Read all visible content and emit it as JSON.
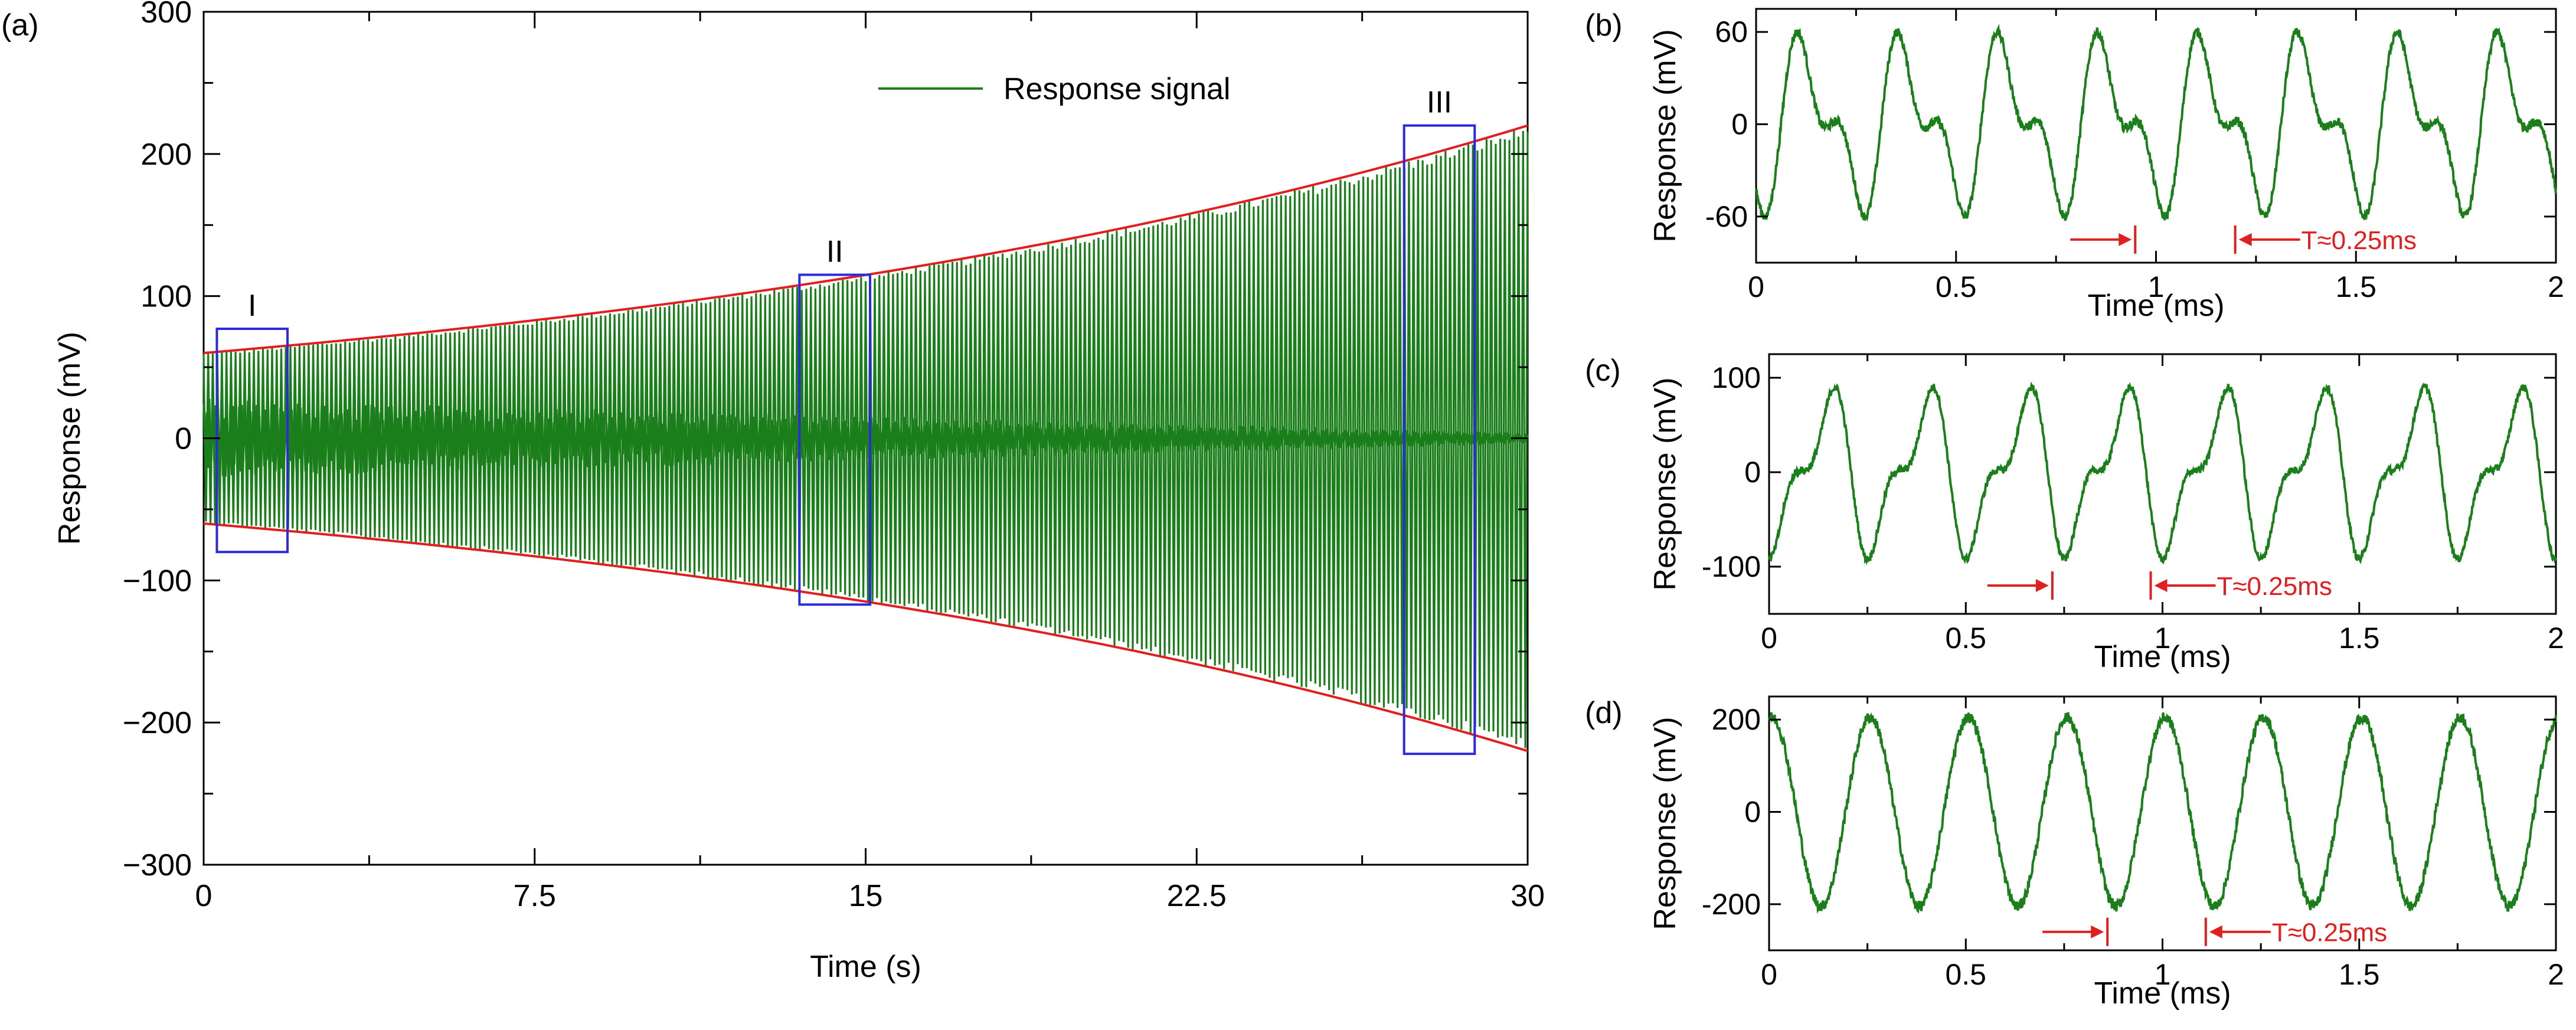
{
  "chart_data": [
    {
      "panel": "(a)",
      "type": "line",
      "xlabel": "Time (s)",
      "ylabel": "Response (mV)",
      "xlim": [
        0,
        30
      ],
      "ylim": [
        -300,
        300
      ],
      "xticks": [
        0,
        7.5,
        15,
        22.5,
        30
      ],
      "xtick_labels": [
        "0",
        "7.5",
        "15",
        "22.5",
        "30"
      ],
      "yticks": [
        -300,
        -200,
        -100,
        0,
        100,
        200,
        300
      ],
      "ytick_labels": [
        "−300",
        "−200",
        "−100",
        "0",
        "100",
        "200",
        "300"
      ],
      "legend": "Response signal",
      "legend_position": "top-right",
      "series": [
        {
          "name": "Response signal",
          "color": "#1a7f1a",
          "envelope_start": 60,
          "envelope_end": 220,
          "envelope_shape": "exponential",
          "inner_noise_start": 28,
          "inner_noise_end": 4
        }
      ],
      "envelope_color": "#e02020",
      "regions": [
        {
          "label": "I",
          "x0": 0.3,
          "x1": 1.9,
          "y0": -80,
          "y1": 77
        },
        {
          "label": "II",
          "x0": 13.5,
          "x1": 15.1,
          "y0": -117,
          "y1": 115
        },
        {
          "label": "III",
          "x0": 27.2,
          "x1": 28.8,
          "y0": -222,
          "y1": 220
        }
      ],
      "region_color": "#2b2bdb"
    },
    {
      "panel": "(b)",
      "type": "line",
      "xlabel": "Time (ms)",
      "ylabel": "Response (mV)",
      "xlim": [
        0,
        2
      ],
      "ylim": [
        -90,
        75
      ],
      "xticks": [
        0,
        0.5,
        1,
        1.5,
        2
      ],
      "xtick_labels": [
        "0",
        "0.5",
        "1",
        "1.5",
        "2"
      ],
      "yticks": [
        -60,
        0,
        60
      ],
      "ytick_labels": [
        "-60",
        "0",
        "60"
      ],
      "period_ms": 0.25,
      "waveform": {
        "a1": 43,
        "a2": 26,
        "phase1": 4.712,
        "phase2": 3.14,
        "noise": 3
      },
      "annotation": {
        "text": "T≈0.25ms",
        "x_left": 0.948,
        "x_right": 1.198,
        "y": -75
      }
    },
    {
      "panel": "(c)",
      "type": "line",
      "xlabel": "Time (ms)",
      "ylabel": "Response (mV)",
      "xlim": [
        0,
        2
      ],
      "ylim": [
        -150,
        125
      ],
      "xticks": [
        0,
        0.5,
        1,
        1.5,
        2
      ],
      "xtick_labels": [
        "0",
        "0.5",
        "1",
        "1.5",
        "2"
      ],
      "yticks": [
        -100,
        0,
        100
      ],
      "ytick_labels": [
        "-100",
        "0",
        "100"
      ],
      "period_ms": 0.25,
      "waveform": {
        "a1": 70,
        "a2": 35,
        "phase1": 4.2,
        "phase2": 5.2,
        "noise": 4
      },
      "annotation": {
        "text": "T≈0.25ms",
        "x_left": 0.72,
        "x_right": 0.97,
        "y": -120
      }
    },
    {
      "panel": "(d)",
      "type": "line",
      "xlabel": "Time (ms)",
      "ylabel": "Response (mV)",
      "xlim": [
        0,
        2
      ],
      "ylim": [
        -300,
        250
      ],
      "xticks": [
        0,
        0.5,
        1,
        1.5,
        2
      ],
      "xtick_labels": [
        "0",
        "0.5",
        "1",
        "1.5",
        "2"
      ],
      "yticks": [
        -200,
        0,
        200
      ],
      "ytick_labels": [
        "-200",
        "0",
        "200"
      ],
      "period_ms": 0.25,
      "waveform": {
        "a1": 205,
        "a2": 0,
        "phase1": 1.4,
        "phase2": 0,
        "noise": 12
      },
      "annotation": {
        "text": "T≈0.25ms",
        "x_left": 0.86,
        "x_right": 1.11,
        "y": -260
      }
    }
  ]
}
